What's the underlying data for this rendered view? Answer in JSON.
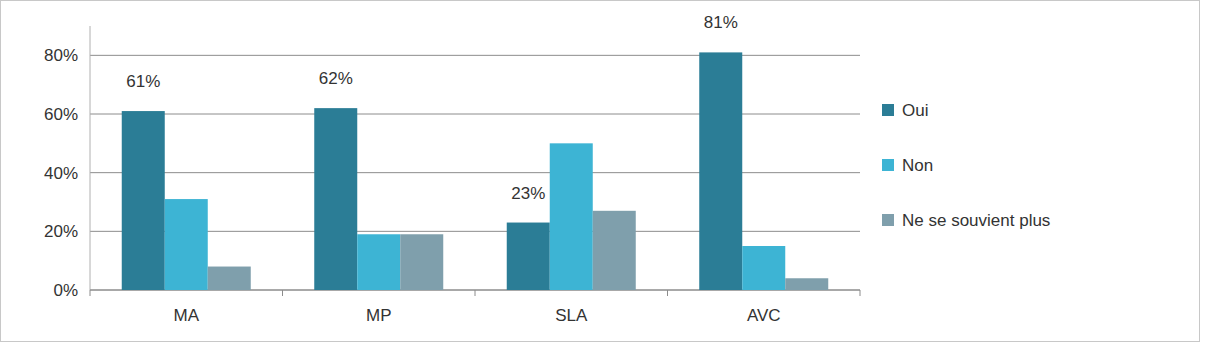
{
  "chart_data": {
    "type": "bar",
    "categories": [
      "MA",
      "MP",
      "SLA",
      "AVC"
    ],
    "series": [
      {
        "name": "Oui",
        "color": "#2b7d96",
        "values": [
          61,
          62,
          23,
          81
        ],
        "data_labels": true,
        "value_labels": [
          "61%",
          "62%",
          "23%",
          "81%"
        ]
      },
      {
        "name": "Non",
        "color": "#3db4d4",
        "values": [
          31,
          19,
          50,
          15
        ]
      },
      {
        "name": "Ne se souvient plus",
        "color": "#7f9fac",
        "values": [
          8,
          19,
          27,
          4
        ]
      }
    ],
    "ylim": [
      0,
      90
    ],
    "yticks": [
      {
        "value": 0,
        "label": "0%"
      },
      {
        "value": 20,
        "label": "20%"
      },
      {
        "value": 40,
        "label": "40%"
      },
      {
        "value": 60,
        "label": "60%"
      },
      {
        "value": 80,
        "label": "80%"
      }
    ],
    "grid": true,
    "legend": "right"
  }
}
